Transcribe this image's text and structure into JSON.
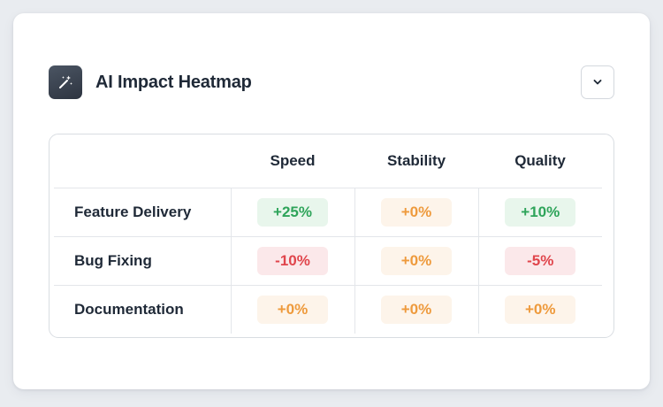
{
  "widget": {
    "title": "AI Impact Heatmap",
    "icon": "magic-wand-sparkles-icon",
    "dropdown_icon": "chevron-down-icon"
  },
  "heatmap": {
    "columns": [
      "Speed",
      "Stability",
      "Quality"
    ],
    "rows": [
      {
        "label": "Feature Delivery",
        "values": [
          "+25%",
          "+0%",
          "+10%"
        ],
        "status": [
          "positive",
          "neutral",
          "positive"
        ]
      },
      {
        "label": "Bug Fixing",
        "values": [
          "-10%",
          "+0%",
          "-5%"
        ],
        "status": [
          "negative",
          "neutral",
          "negative"
        ]
      },
      {
        "label": "Documentation",
        "values": [
          "+0%",
          "+0%",
          "+0%"
        ],
        "status": [
          "neutral",
          "neutral",
          "neutral"
        ]
      }
    ]
  },
  "colors": {
    "positive_text": "#2ea45a",
    "positive_bg": "#e8f6ec",
    "neutral_text": "#ee9a3c",
    "neutral_bg": "#fdf4ea",
    "negative_text": "#e0454c",
    "negative_bg": "#fbe8ea",
    "icon_tile": "#3b424d"
  }
}
